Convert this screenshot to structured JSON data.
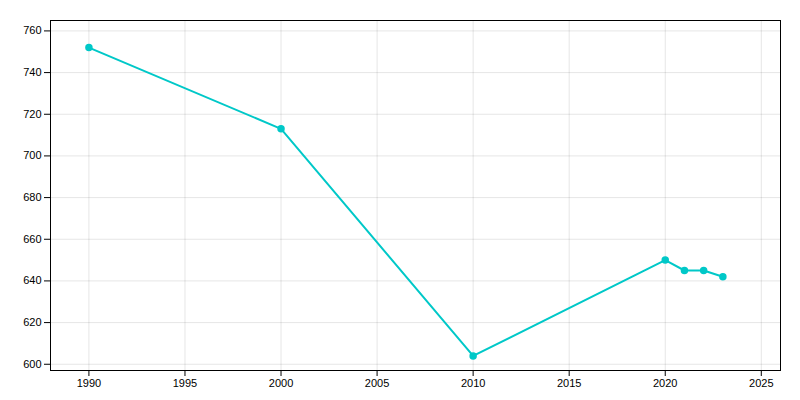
{
  "chart_data": {
    "type": "line",
    "x": [
      1990,
      2000,
      2010,
      2020,
      2021,
      2022,
      2023
    ],
    "values": [
      752,
      713,
      604,
      650,
      645,
      645,
      642
    ],
    "color": "#00c8c8",
    "marker": "circle",
    "xlim": [
      1988,
      2026
    ],
    "ylim": [
      597,
      765
    ],
    "xticks": [
      1990,
      1995,
      2000,
      2005,
      2010,
      2015,
      2020,
      2025
    ],
    "yticks": [
      600,
      620,
      640,
      660,
      680,
      700,
      720,
      740,
      760
    ],
    "grid": true
  }
}
